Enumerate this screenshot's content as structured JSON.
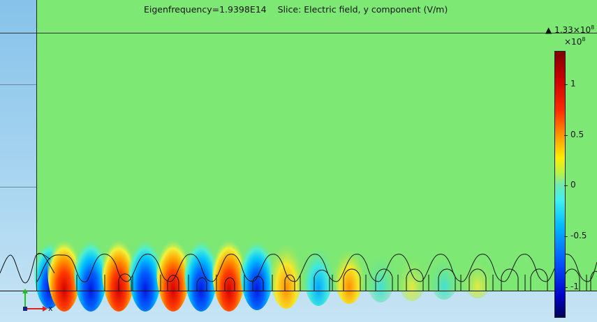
{
  "title": {
    "eigenfrequency": "Eigenfrequency=1.9398E14",
    "slice": "Slice: Electric field, y component (V/m)"
  },
  "max_marker": {
    "glyph": "▲",
    "text": "1.33×10",
    "exponent": "8"
  },
  "colorbar": {
    "multiplier": "×10",
    "multiplier_exponent": "8",
    "ticks": [
      {
        "label": "1",
        "value": 1.0
      },
      {
        "label": "0.5",
        "value": 0.5
      },
      {
        "label": "0",
        "value": 0.0
      },
      {
        "label": "-0.5",
        "value": -0.5
      },
      {
        "label": "-1",
        "value": -1.0
      }
    ],
    "range": [
      -1.29,
      1.33
    ],
    "colors": [
      "#7f0000",
      "#ff2a00",
      "#ffee00",
      "#70eab0",
      "#00b8ff",
      "#0000c8",
      "#00005a"
    ]
  },
  "axes_triad": {
    "x_label": "x",
    "x_color": "#e02020",
    "y_color": "#20c020"
  },
  "field_background_color": "#7de873"
}
